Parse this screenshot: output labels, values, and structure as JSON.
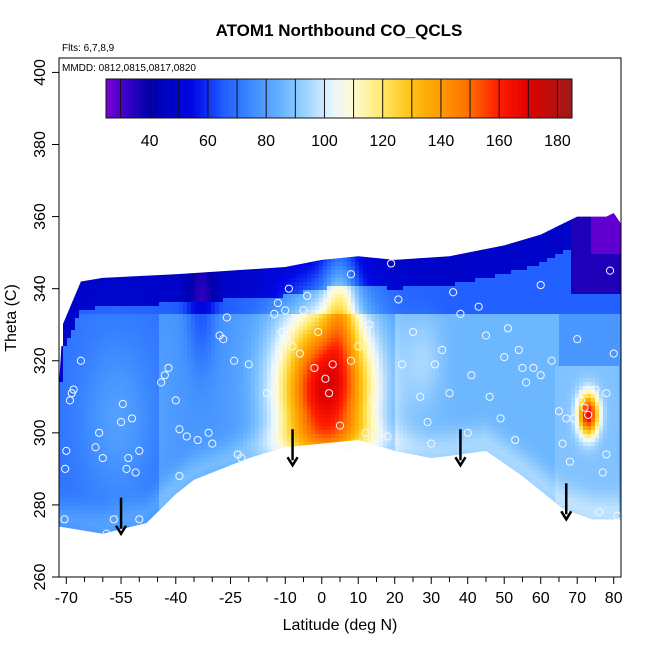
{
  "chart_data": {
    "type": "heatmap",
    "title": "ATOM1 Northbound CO_QCLS",
    "notes": {
      "flights": "Flts: 6,7,8,9",
      "dates": "MMDD: 0812,0815,0817,0820"
    },
    "xlabel": "Latitude (deg N)",
    "ylabel": "Theta (C)",
    "xlim": [
      -72,
      82
    ],
    "ylim": [
      260,
      404
    ],
    "x_ticks": [
      -70,
      -55,
      -40,
      -25,
      -10,
      0,
      10,
      20,
      30,
      40,
      50,
      60,
      70,
      80
    ],
    "x_minor_ticks": [
      -65,
      -60,
      -50,
      -45,
      -35,
      -30,
      -20,
      -15,
      -5,
      5,
      15,
      25,
      35,
      45,
      55,
      65,
      75
    ],
    "y_ticks": [
      260,
      280,
      300,
      320,
      340,
      360,
      380,
      400
    ],
    "colorbar": {
      "min": 25,
      "max": 185,
      "ticks": [
        40,
        60,
        80,
        100,
        120,
        140,
        160,
        180
      ],
      "palette": [
        [
          25,
          "#7b00d6"
        ],
        [
          32,
          "#3a00c8"
        ],
        [
          40,
          "#0000a8"
        ],
        [
          55,
          "#0008e6"
        ],
        [
          65,
          "#1f5bff"
        ],
        [
          75,
          "#3d8bff"
        ],
        [
          85,
          "#66b3ff"
        ],
        [
          95,
          "#a8d8ff"
        ],
        [
          103,
          "#eaf6ff"
        ],
        [
          110,
          "#fffbd2"
        ],
        [
          120,
          "#ffe868"
        ],
        [
          130,
          "#ffc010"
        ],
        [
          140,
          "#ff9a00"
        ],
        [
          150,
          "#ff6c00"
        ],
        [
          160,
          "#ff1a00"
        ],
        [
          170,
          "#e00000"
        ],
        [
          185,
          "#9c1a1a"
        ]
      ]
    },
    "field_envelope": {
      "top_boundary": [
        [
          -72,
          313
        ],
        [
          -71,
          330
        ],
        [
          -66,
          342
        ],
        [
          -60,
          343
        ],
        [
          -40,
          344
        ],
        [
          -25,
          345
        ],
        [
          -10,
          346
        ],
        [
          0,
          348
        ],
        [
          10,
          349
        ],
        [
          20,
          348
        ],
        [
          35,
          349
        ],
        [
          50,
          352
        ],
        [
          60,
          355
        ],
        [
          66,
          358
        ],
        [
          70,
          360
        ],
        [
          78,
          360
        ],
        [
          80,
          361
        ],
        [
          82,
          358
        ]
      ],
      "bottom_boundary": [
        [
          -72,
          274
        ],
        [
          -60,
          272
        ],
        [
          -48,
          275
        ],
        [
          -40,
          283
        ],
        [
          -35,
          287
        ],
        [
          -20,
          293
        ],
        [
          -10,
          296
        ],
        [
          0,
          297
        ],
        [
          10,
          298
        ],
        [
          20,
          295
        ],
        [
          30,
          293
        ],
        [
          38,
          294
        ],
        [
          45,
          295
        ],
        [
          55,
          288
        ],
        [
          66,
          279
        ],
        [
          74,
          276
        ],
        [
          80,
          276
        ],
        [
          82,
          276
        ]
      ]
    },
    "field_features": [
      {
        "type": "background_mid_blue",
        "value": 80
      },
      {
        "type": "tropical_plume",
        "center_lat": 1,
        "center_theta": 312,
        "peak_value": 175,
        "lat_half_width": 13,
        "theta_half_width": 22
      },
      {
        "type": "plume_stalk",
        "center_lat": 5,
        "center_theta": 336,
        "value": 112,
        "lat_half_width": 4,
        "theta_half_width": 14
      },
      {
        "type": "arctic_hotspot",
        "center_lat": 73,
        "center_theta": 305,
        "peak_value": 165,
        "lat_half_width": 3,
        "theta_half_width": 6
      },
      {
        "type": "upper_low_band",
        "theta_start": 343,
        "value": 48
      },
      {
        "type": "northern_upper_low",
        "center_lat": 79,
        "center_theta": 358,
        "value": 28
      }
    ],
    "observations": [
      [
        -70.5,
        276
      ],
      [
        -70.3,
        290
      ],
      [
        -70,
        295
      ],
      [
        -69,
        309
      ],
      [
        -68.5,
        311
      ],
      [
        -68,
        312
      ],
      [
        -66,
        320
      ],
      [
        -62,
        296
      ],
      [
        -61,
        300
      ],
      [
        -60,
        293
      ],
      [
        -59,
        272
      ],
      [
        -57,
        276
      ],
      [
        -55,
        303
      ],
      [
        -54.5,
        308
      ],
      [
        -53.5,
        290
      ],
      [
        -53,
        293
      ],
      [
        -52,
        304
      ],
      [
        -51,
        289
      ],
      [
        -50,
        295
      ],
      [
        -50,
        276
      ],
      [
        -44,
        314
      ],
      [
        -43,
        316
      ],
      [
        -42,
        318
      ],
      [
        -40,
        309
      ],
      [
        -39,
        301
      ],
      [
        -39,
        288
      ],
      [
        -37,
        299
      ],
      [
        -34,
        298
      ],
      [
        -31,
        300
      ],
      [
        -30,
        297
      ],
      [
        -28,
        327
      ],
      [
        -27,
        326
      ],
      [
        -26,
        332
      ],
      [
        -24,
        320
      ],
      [
        -23,
        294
      ],
      [
        -22,
        293
      ],
      [
        -20,
        319
      ],
      [
        -15,
        311
      ],
      [
        -13,
        333
      ],
      [
        -12,
        336
      ],
      [
        -11,
        328
      ],
      [
        -10,
        334
      ],
      [
        -10,
        326
      ],
      [
        -9,
        340
      ],
      [
        -8,
        324
      ],
      [
        -6,
        322
      ],
      [
        -5,
        334
      ],
      [
        -4,
        338
      ],
      [
        -2,
        318
      ],
      [
        -1,
        328
      ],
      [
        1,
        315
      ],
      [
        2,
        311
      ],
      [
        3,
        319
      ],
      [
        5,
        302
      ],
      [
        7,
        296
      ],
      [
        8,
        320
      ],
      [
        8,
        344
      ],
      [
        10,
        324
      ],
      [
        12,
        300
      ],
      [
        13,
        330
      ],
      [
        14,
        309
      ],
      [
        18,
        299
      ],
      [
        19,
        347
      ],
      [
        21,
        337
      ],
      [
        22,
        319
      ],
      [
        25,
        328
      ],
      [
        27,
        310
      ],
      [
        29,
        303
      ],
      [
        30,
        297
      ],
      [
        31,
        319
      ],
      [
        33,
        323
      ],
      [
        35,
        311
      ],
      [
        36,
        339
      ],
      [
        38,
        333
      ],
      [
        40,
        300
      ],
      [
        41,
        316
      ],
      [
        43,
        335
      ],
      [
        45,
        327
      ],
      [
        46,
        310
      ],
      [
        49,
        304
      ],
      [
        50,
        321
      ],
      [
        51,
        329
      ],
      [
        53,
        298
      ],
      [
        54,
        323
      ],
      [
        55,
        318
      ],
      [
        56,
        314
      ],
      [
        58,
        318
      ],
      [
        60,
        316
      ],
      [
        60,
        341
      ],
      [
        63,
        320
      ],
      [
        65,
        306
      ],
      [
        66,
        297
      ],
      [
        67,
        304
      ],
      [
        68,
        292
      ],
      [
        69,
        304
      ],
      [
        70,
        326
      ],
      [
        71,
        309
      ],
      [
        72,
        307
      ],
      [
        73,
        305
      ],
      [
        75,
        312
      ],
      [
        76,
        278
      ],
      [
        77,
        289
      ],
      [
        78,
        294
      ],
      [
        78,
        311
      ],
      [
        79,
        345
      ],
      [
        80,
        322
      ],
      [
        81,
        277
      ]
    ],
    "arrows": [
      {
        "lat": -55,
        "theta_top": 282,
        "theta_tip": 272
      },
      {
        "lat": -8,
        "theta_top": 301,
        "theta_tip": 291
      },
      {
        "lat": 38,
        "theta_top": 301,
        "theta_tip": 291
      },
      {
        "lat": 67,
        "theta_top": 286,
        "theta_tip": 276
      }
    ]
  }
}
